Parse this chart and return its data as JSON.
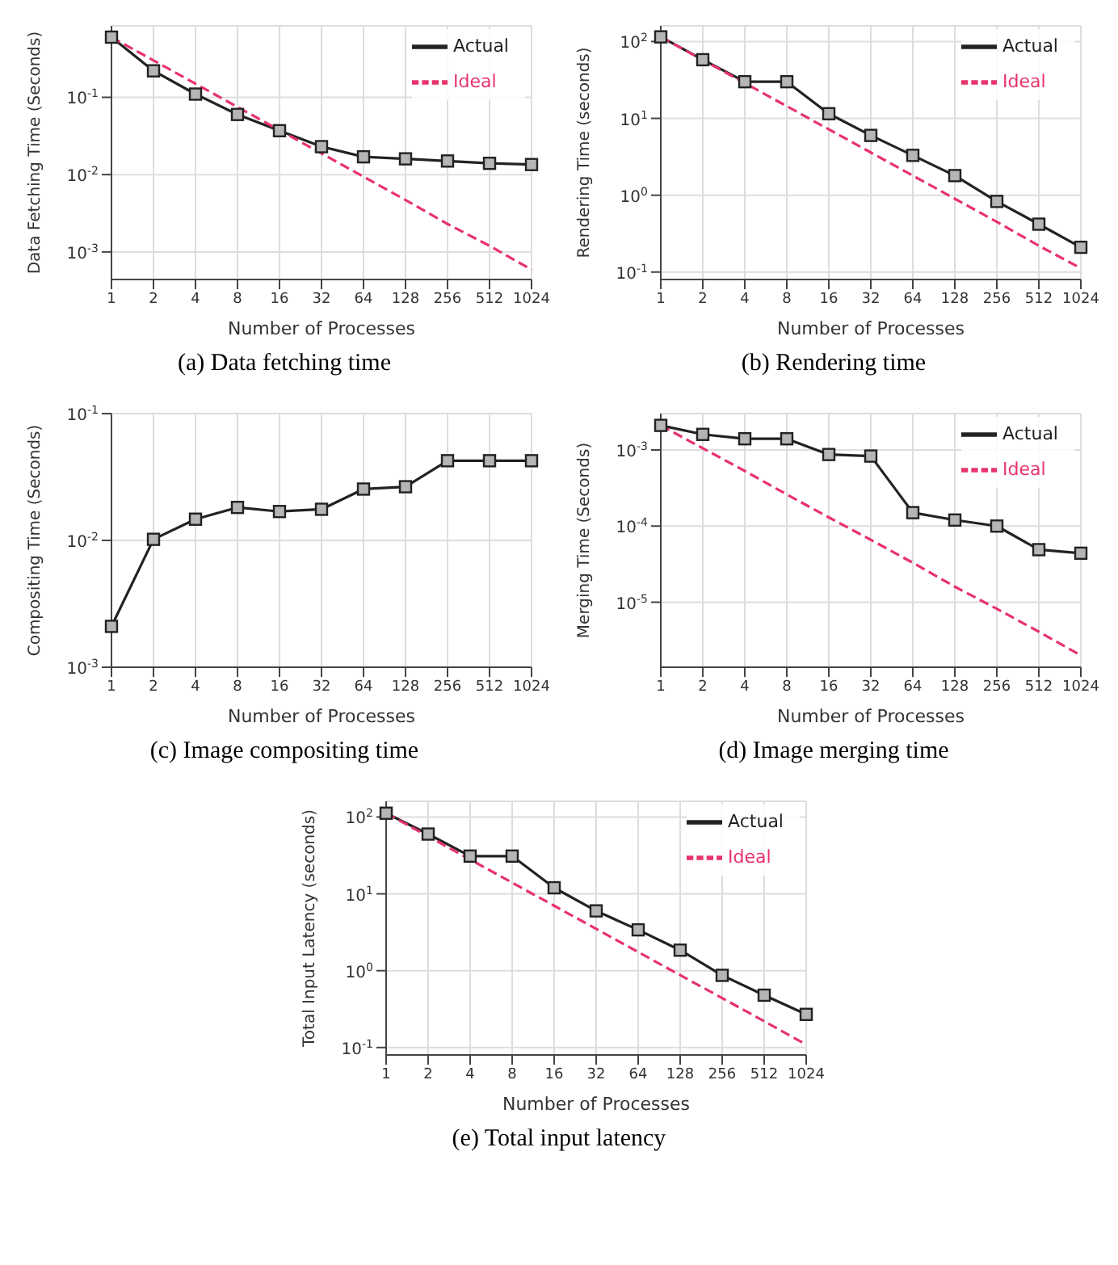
{
  "chart_data": [
    {
      "type": "line",
      "title": "(a) Data fetching time",
      "xlabel": "Number of Processes",
      "ylabel": "Data Fetching Time (Seconds)",
      "categories": [
        "1",
        "2",
        "4",
        "8",
        "16",
        "32",
        "64",
        "128",
        "256",
        "512",
        "1024"
      ],
      "log": "y",
      "grid": true,
      "legend": "top right",
      "ylim": [
        0.00044,
        0.84
      ],
      "yticks": [
        {
          "value": 0.001,
          "label": "10$^{-3}$"
        },
        {
          "value": 0.01,
          "label": "10$^{-2}$"
        },
        {
          "value": 0.1,
          "label": "10$^{-1}$"
        }
      ],
      "series": [
        {
          "name": "Actual",
          "color": "#222222",
          "marker": "square",
          "line_style": "solid",
          "values": [
            0.6,
            0.22,
            0.11,
            0.06,
            0.037,
            0.023,
            0.017,
            0.016,
            0.015,
            0.014,
            0.0135
          ]
        },
        {
          "name": "Ideal",
          "color": "#e8336b",
          "marker": "none",
          "line_style": "dashed",
          "values": [
            0.6,
            0.3,
            0.15,
            0.075,
            0.0375,
            0.0188,
            0.0094,
            0.0047,
            0.0023,
            0.0012,
            0.00059
          ]
        }
      ]
    },
    {
      "type": "line",
      "title": "(b) Rendering time",
      "xlabel": "Number of Processes",
      "ylabel": "Rendering Time (seconds)",
      "categories": [
        "1",
        "2",
        "4",
        "8",
        "16",
        "32",
        "64",
        "128",
        "256",
        "512",
        "1024"
      ],
      "log": "y",
      "grid": true,
      "legend": "top right",
      "ylim": [
        0.08,
        160
      ],
      "yticks": [
        {
          "value": 0.1,
          "label": "10$^{-1}$"
        },
        {
          "value": 1,
          "label": "10$^{0}$"
        },
        {
          "value": 10,
          "label": "10$^{1}$"
        },
        {
          "value": 100,
          "label": "10$^{2}$"
        }
      ],
      "series": [
        {
          "name": "Actual",
          "color": "#222222",
          "marker": "square",
          "line_style": "solid",
          "values": [
            115,
            58,
            30,
            30,
            11.5,
            6,
            3.3,
            1.8,
            0.83,
            0.42,
            0.21
          ]
        },
        {
          "name": "Ideal",
          "color": "#e8336b",
          "marker": "none",
          "line_style": "dashed",
          "values": [
            115,
            57.5,
            28.8,
            14.4,
            7.2,
            3.6,
            1.8,
            0.9,
            0.45,
            0.22,
            0.112
          ]
        }
      ]
    },
    {
      "type": "line",
      "title": "(c) Image compositing time",
      "xlabel": "Number of Processes",
      "ylabel": "Compositing Time (Seconds)",
      "categories": [
        "1",
        "2",
        "4",
        "8",
        "16",
        "32",
        "64",
        "128",
        "256",
        "512",
        "1024"
      ],
      "log": "y",
      "grid": true,
      "ylim": [
        0.001,
        0.1
      ],
      "yticks": [
        {
          "value": 0.001,
          "label": "10$^{-3}$"
        },
        {
          "value": 0.01,
          "label": "10$^{-2}$"
        },
        {
          "value": 0.1,
          "label": "10$^{-1}$"
        }
      ],
      "series": [
        {
          "color": "#222222",
          "marker": "square",
          "line_style": "solid",
          "values": [
            0.0021,
            0.0102,
            0.0147,
            0.0182,
            0.0169,
            0.0176,
            0.0254,
            0.0265,
            0.0425,
            0.0425,
            0.0425
          ]
        }
      ]
    },
    {
      "type": "line",
      "title": "(d) Image merging time",
      "xlabel": "Number of Processes",
      "ylabel": "Merging Time (Seconds)",
      "categories": [
        "1",
        "2",
        "4",
        "8",
        "16",
        "32",
        "64",
        "128",
        "256",
        "512",
        "1024"
      ],
      "log": "y",
      "grid": true,
      "legend": "top right",
      "ylim": [
        1.4e-06,
        0.003
      ],
      "yticks": [
        {
          "value": 1e-05,
          "label": "10$^{-5}$"
        },
        {
          "value": 0.0001,
          "label": "10$^{-4}$"
        },
        {
          "value": 0.001,
          "label": "10$^{-3}$"
        }
      ],
      "series": [
        {
          "name": "Actual",
          "color": "#222222",
          "marker": "square",
          "line_style": "solid",
          "values": [
            0.0021,
            0.0016,
            0.0014,
            0.0014,
            0.00087,
            0.00083,
            0.00015,
            0.00012,
            0.0001,
            4.9e-05,
            4.4e-05
          ]
        },
        {
          "name": "Ideal",
          "color": "#e8336b",
          "marker": "none",
          "line_style": "dashed",
          "values": [
            0.0021,
            0.00105,
            0.00053,
            0.00026,
            0.00013,
            6.6e-05,
            3.3e-05,
            1.6e-05,
            8.2e-06,
            4.1e-06,
            2e-06
          ]
        }
      ]
    },
    {
      "type": "line",
      "title": "(e) Total input latency",
      "xlabel": "Number of Processes",
      "ylabel": "Total Input Latency (seconds)",
      "categories": [
        "1",
        "2",
        "4",
        "8",
        "16",
        "32",
        "64",
        "128",
        "256",
        "512",
        "1024"
      ],
      "log": "y",
      "grid": true,
      "legend": "top right",
      "ylim": [
        0.08,
        160
      ],
      "yticks": [
        {
          "value": 0.1,
          "label": "10$^{-1}$"
        },
        {
          "value": 1,
          "label": "10$^{0}$"
        },
        {
          "value": 10,
          "label": "10$^{1}$"
        },
        {
          "value": 100,
          "label": "10$^{2}$"
        }
      ],
      "series": [
        {
          "name": "Actual",
          "color": "#222222",
          "marker": "square",
          "line_style": "solid",
          "values": [
            112,
            60,
            31,
            31,
            12,
            6,
            3.4,
            1.85,
            0.87,
            0.48,
            0.27
          ]
        },
        {
          "name": "Ideal",
          "color": "#e8336b",
          "marker": "none",
          "line_style": "dashed",
          "values": [
            112,
            56,
            28,
            14,
            7,
            3.5,
            1.75,
            0.875,
            0.44,
            0.22,
            0.109
          ]
        }
      ]
    }
  ]
}
